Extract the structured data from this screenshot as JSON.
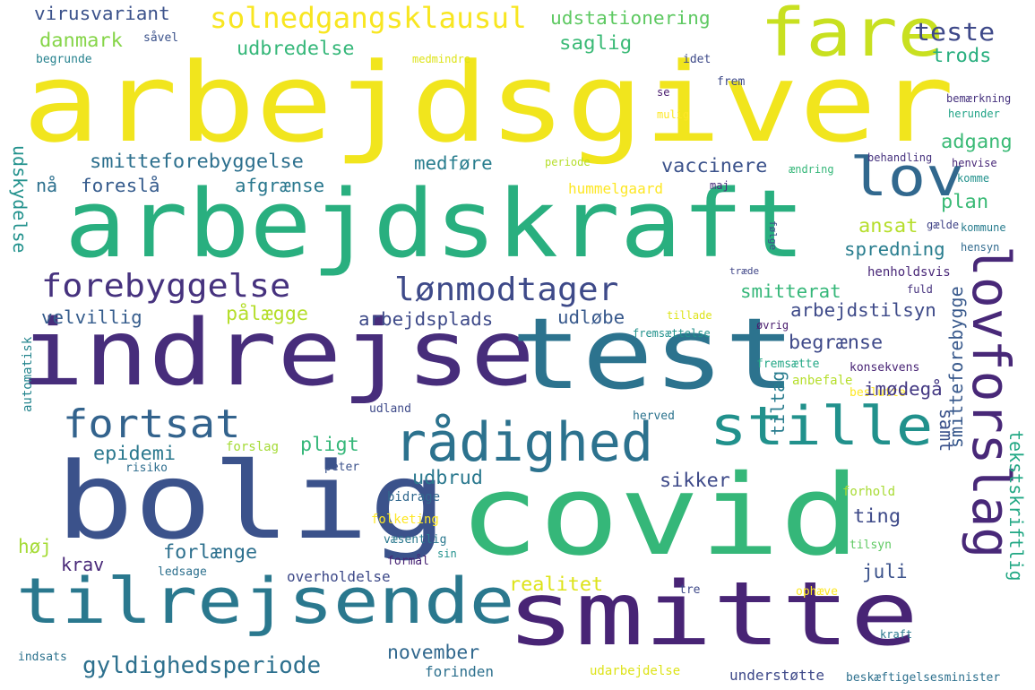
{
  "words": [
    {
      "text": "arbejdsgiver",
      "color": "#f1e51d"
    },
    {
      "text": "arbejdskraft",
      "color": "#29af7f"
    },
    {
      "text": "indrejse",
      "color": "#472d7b"
    },
    {
      "text": "test",
      "color": "#2c738e"
    },
    {
      "text": "bolig",
      "color": "#3b528b"
    },
    {
      "text": "covid",
      "color": "#35b779"
    },
    {
      "text": "smitte",
      "color": "#482475"
    },
    {
      "text": "tilrejsende",
      "color": "#2a788e"
    },
    {
      "text": "lovforslag",
      "color": "#482878"
    },
    {
      "text": "fare",
      "color": "#c8e020"
    },
    {
      "text": "lov",
      "color": "#31688e"
    },
    {
      "text": "stille",
      "color": "#21918c"
    },
    {
      "text": "rådighed",
      "color": "#2c728e"
    },
    {
      "text": "fortsat",
      "color": "#33638d"
    },
    {
      "text": "forebyggelse",
      "color": "#46327e"
    },
    {
      "text": "lønmodtager",
      "color": "#3e4a89"
    },
    {
      "text": "solnedgangsklausul",
      "color": "#f8e621"
    },
    {
      "text": "gyldighedsperiode",
      "color": "#2d708e"
    },
    {
      "text": "virusvariant",
      "color": "#3b528b"
    },
    {
      "text": "udstationering",
      "color": "#5ec962"
    },
    {
      "text": "teste",
      "color": "#3e4989"
    },
    {
      "text": "danmark",
      "color": "#86d549"
    },
    {
      "text": "såvel",
      "color": "#3b528b"
    },
    {
      "text": "udbredelse",
      "color": "#35b779"
    },
    {
      "text": "saglig",
      "color": "#3aba76"
    },
    {
      "text": "trods",
      "color": "#29af7f"
    },
    {
      "text": "begrunde",
      "color": "#26828e"
    },
    {
      "text": "medmindre",
      "color": "#dde318"
    },
    {
      "text": "idet",
      "color": "#3e4a89"
    },
    {
      "text": "frem",
      "color": "#3e4a89"
    },
    {
      "text": "se",
      "color": "#481b6d"
    },
    {
      "text": "bemærkning",
      "color": "#46327e"
    },
    {
      "text": "herunder",
      "color": "#20a386"
    },
    {
      "text": "mulig",
      "color": "#fde725"
    },
    {
      "text": "adgang",
      "color": "#3aba76"
    },
    {
      "text": "smitteforebyggelse",
      "color": "#2d708e"
    },
    {
      "text": "medføre",
      "color": "#287d8e"
    },
    {
      "text": "periode",
      "color": "#b5de2b"
    },
    {
      "text": "vaccinere",
      "color": "#3b528b"
    },
    {
      "text": "ændring",
      "color": "#35b779"
    },
    {
      "text": "behandling",
      "color": "#46327e"
    },
    {
      "text": "henvise",
      "color": "#482878"
    },
    {
      "text": "komme",
      "color": "#21918c"
    },
    {
      "text": "nå",
      "color": "#2d708e"
    },
    {
      "text": "foreslå",
      "color": "#365c8d"
    },
    {
      "text": "afgrænse",
      "color": "#2a788e"
    },
    {
      "text": "hummelgaard",
      "color": "#fde725"
    },
    {
      "text": "maj",
      "color": "#472d7b"
    },
    {
      "text": "plan",
      "color": "#3aba76"
    },
    {
      "text": "udskydelse",
      "color": "#21918c"
    },
    {
      "text": "ansat",
      "color": "#b5de2b"
    },
    {
      "text": "gælde",
      "color": "#414487"
    },
    {
      "text": "kommune",
      "color": "#287c8e"
    },
    {
      "text": "følge",
      "color": "#3e4989"
    },
    {
      "text": "spredning",
      "color": "#287d8e"
    },
    {
      "text": "hensyn",
      "color": "#306a8e"
    },
    {
      "text": "træde",
      "color": "#404688"
    },
    {
      "text": "henholdsvis",
      "color": "#482677"
    },
    {
      "text": "fuld",
      "color": "#46327e"
    },
    {
      "text": "smitterat",
      "color": "#35b779"
    },
    {
      "text": "velvillig",
      "color": "#365d8d"
    },
    {
      "text": "pålægge",
      "color": "#b5de2b"
    },
    {
      "text": "arbejdsplads",
      "color": "#3e4a89"
    },
    {
      "text": "udløbe",
      "color": "#38598c"
    },
    {
      "text": "tillade",
      "color": "#dde318"
    },
    {
      "text": "arbejdstilsyn",
      "color": "#3e4a89"
    },
    {
      "text": "øvrig",
      "color": "#481b6d"
    },
    {
      "text": "fremsættelse",
      "color": "#21918c"
    },
    {
      "text": "begrænse",
      "color": "#3e4989"
    },
    {
      "text": "fremsætte",
      "color": "#22a785"
    },
    {
      "text": "konsekvens",
      "color": "#482475"
    },
    {
      "text": "anbefale",
      "color": "#b5de2b"
    },
    {
      "text": "beslutte",
      "color": "#fde725"
    },
    {
      "text": "imødegå",
      "color": "#443983"
    },
    {
      "text": "automatisk",
      "color": "#25858e"
    },
    {
      "text": "udland",
      "color": "#3e4a89"
    },
    {
      "text": "herved",
      "color": "#2c738e"
    },
    {
      "text": "samt",
      "color": "#3b528b"
    },
    {
      "text": "epidemi",
      "color": "#2a788e"
    },
    {
      "text": "pligt",
      "color": "#35b779"
    },
    {
      "text": "forslag",
      "color": "#a5db36"
    },
    {
      "text": "tiltag",
      "color": "#287c8e"
    },
    {
      "text": "tekstskriftlig",
      "color": "#22a884"
    },
    {
      "text": "smitteforebygge",
      "color": "#38598c"
    },
    {
      "text": "risiko",
      "color": "#2e6e8e"
    },
    {
      "text": "peter",
      "color": "#3b528b"
    },
    {
      "text": "udbrud",
      "color": "#2a788e"
    },
    {
      "text": "sikker",
      "color": "#3e4a89"
    },
    {
      "text": "bidrage",
      "color": "#31688e"
    },
    {
      "text": "forhold",
      "color": "#a8db34"
    },
    {
      "text": "ting",
      "color": "#3e4a89"
    },
    {
      "text": "folketing",
      "color": "#fde725"
    },
    {
      "text": "høj",
      "color": "#a5db36"
    },
    {
      "text": "forlænge",
      "color": "#2d708e"
    },
    {
      "text": "væsentlig",
      "color": "#2a788e"
    },
    {
      "text": "tilsyn",
      "color": "#5ec962"
    },
    {
      "text": "krav",
      "color": "#482878"
    },
    {
      "text": "sin",
      "color": "#21918c"
    },
    {
      "text": "ledsage",
      "color": "#2d708e"
    },
    {
      "text": "formål",
      "color": "#482475"
    },
    {
      "text": "juli",
      "color": "#3b528b"
    },
    {
      "text": "overholdelse",
      "color": "#3e4a89"
    },
    {
      "text": "realitet",
      "color": "#dde318"
    },
    {
      "text": "tre",
      "color": "#3e4989"
    },
    {
      "text": "ophæve",
      "color": "#fde725"
    },
    {
      "text": "november",
      "color": "#31688e"
    },
    {
      "text": "kraft",
      "color": "#2a788e"
    },
    {
      "text": "indsats",
      "color": "#2c728e"
    },
    {
      "text": "forinden",
      "color": "#2d708e"
    },
    {
      "text": "udarbejdelse",
      "color": "#dde318"
    },
    {
      "text": "understøtte",
      "color": "#3e4989"
    },
    {
      "text": "beskæftigelsesminister",
      "color": "#2d708e"
    }
  ]
}
